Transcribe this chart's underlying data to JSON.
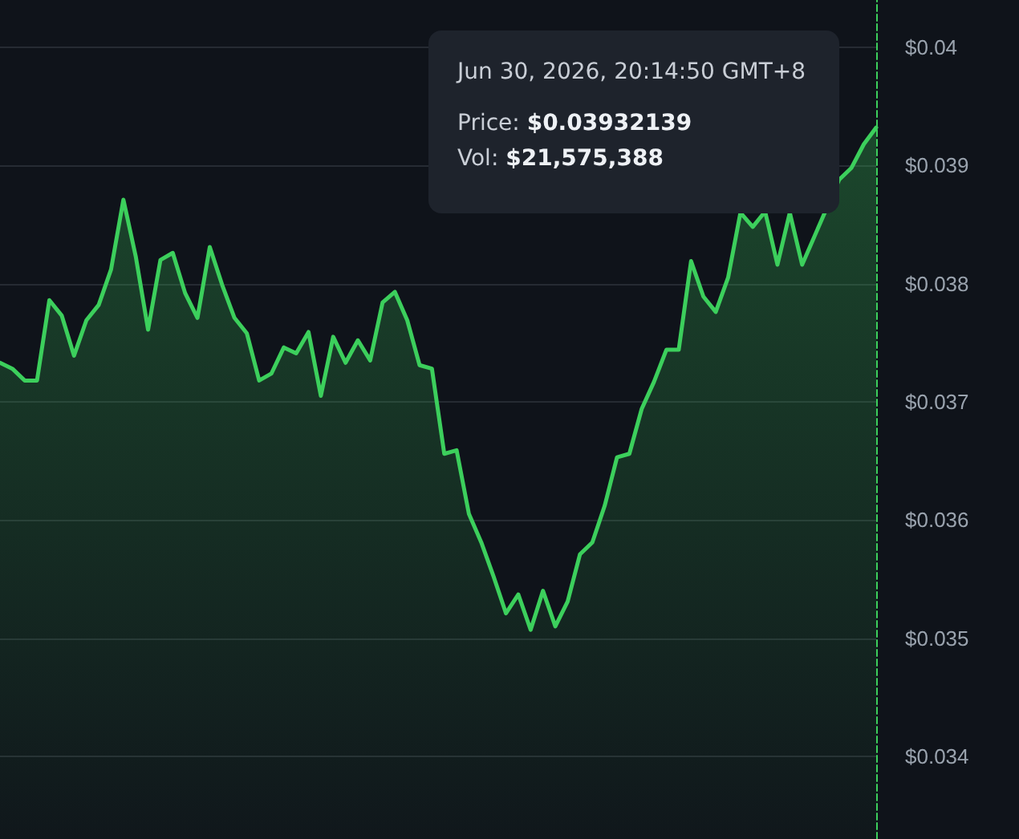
{
  "chart_data": {
    "type": "area",
    "categories": [
      null,
      null,
      null,
      null,
      null,
      null,
      null,
      null,
      null,
      null,
      null,
      null,
      null,
      null,
      null,
      null,
      null,
      null,
      null,
      null,
      null,
      null,
      null,
      null,
      null,
      null,
      null,
      null,
      null,
      null,
      null,
      null,
      null,
      null,
      null,
      null,
      null,
      null,
      null,
      null,
      null,
      null,
      null,
      null,
      null,
      null,
      null,
      null,
      null,
      null,
      null,
      null,
      null,
      null,
      null,
      null,
      null,
      null,
      null,
      null,
      null,
      null,
      null,
      null,
      null,
      null,
      null,
      null,
      null,
      null,
      null,
      null
    ],
    "series": [
      {
        "color": "#3ccf5c",
        "values": [
          0.03733,
          0.03728,
          0.03718,
          0.03718,
          0.03786,
          0.03773,
          0.03739,
          0.03769,
          0.03782,
          0.03812,
          0.03871,
          0.03823,
          0.03761,
          0.0382,
          0.03826,
          0.03792,
          0.03771,
          0.03831,
          0.03799,
          0.03771,
          0.03758,
          0.03718,
          0.03724,
          0.03746,
          0.03741,
          0.03759,
          0.03705,
          0.03755,
          0.03733,
          0.03752,
          0.03735,
          0.03784,
          0.03793,
          0.03769,
          0.03731,
          0.03728,
          0.03656,
          0.03659,
          0.03605,
          0.03581,
          0.03552,
          0.03521,
          0.03537,
          0.03507,
          0.0354,
          0.0351,
          0.03531,
          0.03571,
          0.03581,
          0.03612,
          0.03653,
          0.03656,
          0.03694,
          0.03717,
          0.03744,
          0.03744,
          0.03819,
          0.03789,
          0.03776,
          0.03805,
          0.0386,
          0.03848,
          0.03861,
          0.03816,
          0.0386,
          0.03816,
          null,
          null,
          0.03888,
          0.03898,
          0.03918,
          0.03932
        ]
      }
    ],
    "ylim": [
      0.0333,
      0.0404
    ],
    "yticks": [
      {
        "value": 0.034,
        "label": "$0.034"
      },
      {
        "value": 0.035,
        "label": "$0.035"
      },
      {
        "value": 0.036,
        "label": "$0.036"
      },
      {
        "value": 0.037,
        "label": "$0.037"
      },
      {
        "value": 0.038,
        "label": "$0.038"
      },
      {
        "value": 0.039,
        "label": "$0.039"
      },
      {
        "value": 0.04,
        "label": "$0.04"
      }
    ],
    "tick_labels": "y",
    "grid": "y",
    "line_style": "solid",
    "annotations": [
      "Jun 30, 2026, 20:14:50 GMT+8",
      "Price: $0.03932139",
      "Vol: $21,575,388"
    ]
  }
}
